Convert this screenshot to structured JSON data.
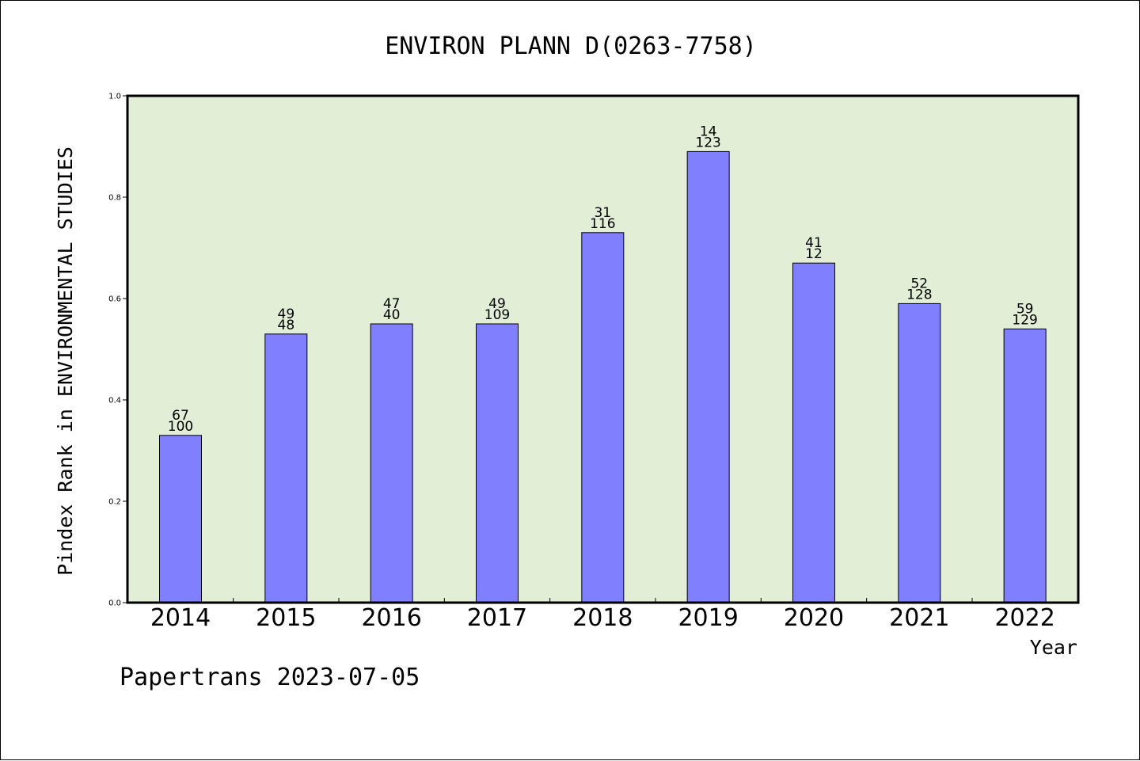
{
  "chart_data": {
    "type": "bar",
    "title": "ENVIRON PLANN D(0263-7758)",
    "xlabel": "Year",
    "ylabel": "Pindex Rank in ENVIRONMENTAL STUDIES",
    "categories": [
      "2014",
      "2015",
      "2016",
      "2017",
      "2018",
      "2019",
      "2020",
      "2021",
      "2022"
    ],
    "values": [
      0.33,
      0.53,
      0.55,
      0.55,
      0.73,
      0.89,
      0.67,
      0.59,
      0.54
    ],
    "labels_top": [
      "67",
      "49",
      "47",
      "49",
      "31",
      "14",
      "41",
      "52",
      "59"
    ],
    "labels_bottom": [
      "100",
      "48",
      "40",
      "109",
      "116",
      "123",
      "12",
      "128",
      "129"
    ],
    "ylim": [
      0,
      1.0
    ],
    "yticks": [
      "0.0",
      "0.2",
      "0.4",
      "0.6",
      "0.8",
      "1.0"
    ],
    "grid": false,
    "colors": {
      "plot_background": "#e2efd6",
      "bar_fill": "#8080ff",
      "bar_edge": "#000000"
    }
  },
  "footer": {
    "text": "Papertrans 2023-07-05"
  }
}
